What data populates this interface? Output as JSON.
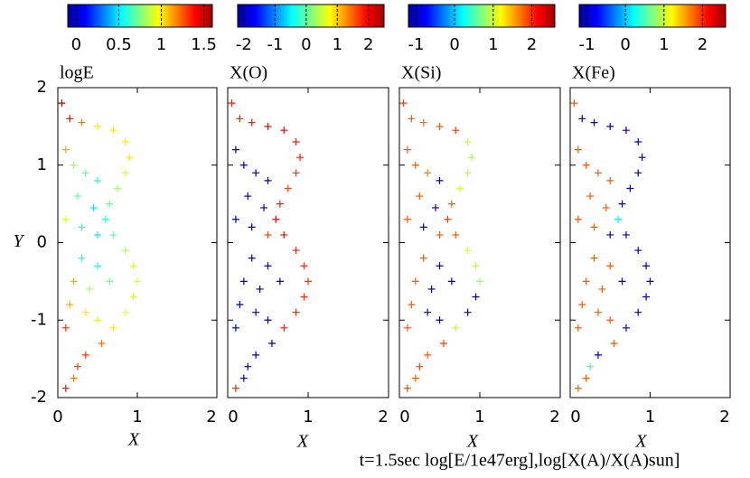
{
  "chart_data": [
    {
      "type": "scatter",
      "colorbar_label": "logE",
      "ylabel": "Y",
      "xlabel": "X",
      "xlim": [
        0,
        2
      ],
      "ylim": [
        -2,
        2
      ],
      "xticks": [
        0,
        1,
        2
      ],
      "yticks": [
        -2,
        -1,
        0,
        1,
        2
      ],
      "clim": [
        -0.1,
        1.6
      ],
      "cticks": [
        0,
        0.5,
        1,
        1.5
      ],
      "colormap": "jet",
      "x": [
        0.15,
        0.3,
        0.5,
        0.7,
        0.85,
        0.9,
        0.85,
        0.75,
        0.65,
        0.6,
        0.7,
        0.85,
        0.95,
        1.0,
        0.95,
        0.85,
        0.7,
        0.55,
        0.35,
        0.25,
        0.2,
        0.1,
        0.05,
        0.1,
        0.2,
        0.35,
        0.5,
        0.25,
        0.45,
        0.1,
        0.3,
        0.5,
        0.3,
        0.5,
        0.2,
        0.4,
        0.65,
        0.15,
        0.35,
        0.5,
        0.1
      ],
      "y": [
        1.6,
        1.55,
        1.5,
        1.45,
        1.3,
        1.1,
        0.9,
        0.7,
        0.5,
        0.3,
        0.1,
        -0.1,
        -0.3,
        -0.5,
        -0.7,
        -0.9,
        -1.1,
        -1.3,
        -1.45,
        -1.6,
        -1.75,
        -1.88,
        1.8,
        1.2,
        1.0,
        0.9,
        0.8,
        0.6,
        0.45,
        0.3,
        0.2,
        0.1,
        -0.2,
        -0.3,
        -0.5,
        -0.6,
        -0.5,
        -0.8,
        -0.9,
        -1.0,
        -1.1
      ],
      "c": [
        1.4,
        1.2,
        1.0,
        1.0,
        1.0,
        1.0,
        0.9,
        0.8,
        0.7,
        0.6,
        0.7,
        0.8,
        0.9,
        0.9,
        0.9,
        0.9,
        1.0,
        1.2,
        1.3,
        1.3,
        1.2,
        1.4,
        1.5,
        1.1,
        0.8,
        0.7,
        0.6,
        0.7,
        0.5,
        0.9,
        0.6,
        0.5,
        0.6,
        0.6,
        1.1,
        0.8,
        0.7,
        1.1,
        1.0,
        0.9,
        1.3
      ]
    },
    {
      "type": "scatter",
      "colorbar_label": "X(O)",
      "xlabel": "X",
      "xlim": [
        0,
        2
      ],
      "ylim": [
        -2,
        2
      ],
      "xticks": [
        0,
        1,
        2
      ],
      "yticks": [
        -2,
        -1,
        0,
        1,
        2
      ],
      "clim": [
        -2.2,
        2.5
      ],
      "cticks": [
        -2,
        -1,
        0,
        1,
        2
      ],
      "colormap": "jet",
      "x": [
        0.15,
        0.3,
        0.5,
        0.7,
        0.85,
        0.9,
        0.85,
        0.75,
        0.65,
        0.6,
        0.7,
        0.85,
        0.95,
        1.0,
        0.95,
        0.85,
        0.7,
        0.55,
        0.35,
        0.25,
        0.2,
        0.1,
        0.05,
        0.1,
        0.2,
        0.35,
        0.5,
        0.25,
        0.45,
        0.1,
        0.3,
        0.5,
        0.3,
        0.5,
        0.2,
        0.4,
        0.65,
        0.15,
        0.35,
        0.5,
        0.1
      ],
      "y": [
        1.6,
        1.55,
        1.5,
        1.45,
        1.3,
        1.1,
        0.9,
        0.7,
        0.5,
        0.3,
        0.1,
        -0.1,
        -0.3,
        -0.5,
        -0.7,
        -0.9,
        -1.1,
        -1.3,
        -1.45,
        -1.6,
        -1.75,
        -1.88,
        1.8,
        1.2,
        1.0,
        0.9,
        0.8,
        0.6,
        0.45,
        0.3,
        0.2,
        0.1,
        -0.2,
        -0.3,
        -0.5,
        -0.6,
        -0.5,
        -0.8,
        -0.9,
        -1.0,
        -1.1
      ],
      "c": [
        1.8,
        1.8,
        1.9,
        1.9,
        1.8,
        1.8,
        1.7,
        1.6,
        1.8,
        1.9,
        1.9,
        1.8,
        1.7,
        1.7,
        1.7,
        1.8,
        1.8,
        -2,
        -2,
        -1.9,
        -2,
        1.8,
        1.8,
        -2,
        -2,
        -2,
        -2,
        -2,
        -2,
        -2,
        -2,
        1.6,
        -2,
        -2,
        -2,
        -2,
        -2,
        -2,
        -2,
        -2,
        -2
      ]
    },
    {
      "type": "scatter",
      "colorbar_label": "X(Si)",
      "xlabel": "X",
      "xlim": [
        0,
        2
      ],
      "ylim": [
        -2,
        2
      ],
      "xticks": [
        0,
        1,
        2
      ],
      "yticks": [
        -2,
        -1,
        0,
        1,
        2
      ],
      "clim": [
        -1.2,
        2.6
      ],
      "cticks": [
        -1,
        0,
        1,
        2
      ],
      "colormap": "jet",
      "x": [
        0.15,
        0.3,
        0.5,
        0.7,
        0.85,
        0.9,
        0.85,
        0.75,
        0.65,
        0.6,
        0.7,
        0.85,
        0.95,
        1.0,
        0.95,
        0.85,
        0.7,
        0.55,
        0.35,
        0.25,
        0.2,
        0.1,
        0.05,
        0.1,
        0.2,
        0.35,
        0.5,
        0.25,
        0.45,
        0.1,
        0.3,
        0.5,
        0.3,
        0.5,
        0.2,
        0.4,
        0.65,
        0.15,
        0.35,
        0.5,
        0.1
      ],
      "y": [
        1.6,
        1.55,
        1.5,
        1.45,
        1.3,
        1.1,
        0.9,
        0.7,
        0.5,
        0.3,
        0.1,
        -0.1,
        -0.3,
        -0.5,
        -0.7,
        -0.9,
        -1.1,
        -1.3,
        -1.45,
        -1.6,
        -1.75,
        -1.88,
        1.8,
        1.2,
        1.0,
        0.9,
        0.8,
        0.6,
        0.45,
        0.3,
        0.2,
        0.1,
        -0.2,
        -0.3,
        -0.5,
        -0.6,
        -0.5,
        -0.8,
        -0.9,
        -1.0,
        -1.1
      ],
      "c": [
        1.8,
        1.7,
        1.8,
        1.9,
        0.9,
        0.8,
        0.9,
        1.0,
        1.8,
        1.9,
        1.8,
        1.0,
        0.9,
        0.8,
        -1,
        -1,
        0.9,
        1.9,
        1.8,
        1.9,
        1.8,
        1.9,
        1.9,
        1.8,
        1.8,
        1.7,
        -1,
        1.8,
        -1,
        1.8,
        -1,
        1.8,
        1.8,
        -1,
        1.8,
        -1,
        -1,
        1.8,
        -1,
        -1,
        1.8
      ]
    },
    {
      "type": "scatter",
      "colorbar_label": "X(Fe)",
      "xlabel": "X",
      "xlim": [
        0,
        2
      ],
      "ylim": [
        -2,
        2
      ],
      "xticks": [
        0,
        1,
        2
      ],
      "yticks": [
        -2,
        -1,
        0,
        1,
        2
      ],
      "clim": [
        -1.2,
        2.6
      ],
      "cticks": [
        -1,
        0,
        1,
        2
      ],
      "colormap": "jet",
      "x": [
        0.15,
        0.3,
        0.5,
        0.7,
        0.85,
        0.9,
        0.85,
        0.75,
        0.65,
        0.6,
        0.7,
        0.85,
        0.95,
        1.0,
        0.95,
        0.85,
        0.7,
        0.55,
        0.35,
        0.25,
        0.2,
        0.1,
        0.05,
        0.1,
        0.2,
        0.35,
        0.5,
        0.25,
        0.45,
        0.1,
        0.3,
        0.5,
        0.3,
        0.5,
        0.2,
        0.4,
        0.65,
        0.15,
        0.35,
        0.5,
        0.1
      ],
      "y": [
        1.6,
        1.55,
        1.5,
        1.45,
        1.3,
        1.1,
        0.9,
        0.7,
        0.5,
        0.3,
        0.1,
        -0.1,
        -0.3,
        -0.5,
        -0.7,
        -0.9,
        -1.1,
        -1.3,
        -1.45,
        -1.6,
        -1.75,
        -1.88,
        1.8,
        1.2,
        1.0,
        0.9,
        0.8,
        0.6,
        0.45,
        0.3,
        0.2,
        0.1,
        -0.2,
        -0.3,
        -0.5,
        -0.6,
        -0.5,
        -0.8,
        -0.9,
        -1.0,
        -1.1
      ],
      "c": [
        -1,
        -1,
        -1,
        -1,
        -1,
        -1,
        -1,
        -1,
        -1,
        0.2,
        -1,
        -1,
        -1,
        -1,
        -1,
        -1,
        -1,
        1.8,
        -1,
        0.4,
        1.8,
        1.8,
        1.8,
        1.8,
        1.8,
        1.8,
        1.8,
        1.8,
        1.8,
        1.8,
        1.8,
        -1,
        1.8,
        1.8,
        1.8,
        1.8,
        -1,
        1.8,
        1.8,
        1.8,
        1.8
      ]
    }
  ],
  "caption": "t=1.5sec  log[E/1e47erg],log[X(A)/X(A)sun]"
}
